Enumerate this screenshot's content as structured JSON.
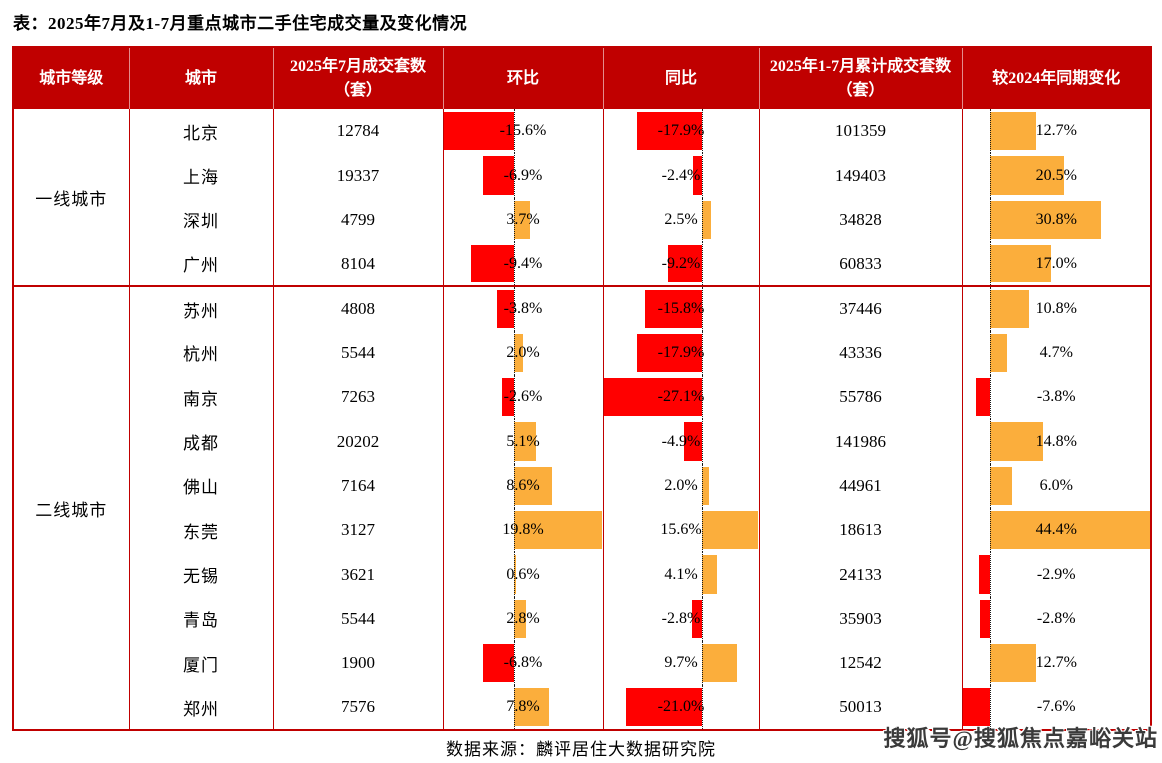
{
  "page_title": "表：2025年7月及1-7月重点城市二手住宅成交量及变化情况",
  "chart_data": {
    "type": "table",
    "title": "2025年7月及1-7月重点城市二手住宅成交量及变化情况",
    "columns": [
      "城市等级",
      "城市",
      "2025年7月成交套数（套）",
      "环比",
      "同比",
      "2025年1-7月累计成交套数（套）",
      "较2024年同期变化"
    ],
    "bar_ranges": {
      "mom": {
        "min": -15.6,
        "max": 19.8
      },
      "yoy": {
        "min": -27.1,
        "max": 15.6
      },
      "cum_chg": {
        "min": -7.6,
        "max": 44.4
      }
    },
    "tiers": [
      {
        "label": "一线城市",
        "rows": [
          {
            "city": "北京",
            "jul_volume": "12784",
            "mom": -15.6,
            "yoy": -17.9,
            "cum_volume": "101359",
            "cum_chg": 12.7
          },
          {
            "city": "上海",
            "jul_volume": "19337",
            "mom": -6.9,
            "yoy": -2.4,
            "cum_volume": "149403",
            "cum_chg": 20.5
          },
          {
            "city": "深圳",
            "jul_volume": "4799",
            "mom": 3.7,
            "yoy": 2.5,
            "cum_volume": "34828",
            "cum_chg": 30.8
          },
          {
            "city": "广州",
            "jul_volume": "8104",
            "mom": -9.4,
            "yoy": -9.2,
            "cum_volume": "60833",
            "cum_chg": 17.0
          }
        ]
      },
      {
        "label": "二线城市",
        "rows": [
          {
            "city": "苏州",
            "jul_volume": "4808",
            "mom": -3.8,
            "yoy": -15.8,
            "cum_volume": "37446",
            "cum_chg": 10.8
          },
          {
            "city": "杭州",
            "jul_volume": "5544",
            "mom": 2.0,
            "yoy": -17.9,
            "cum_volume": "43336",
            "cum_chg": 4.7
          },
          {
            "city": "南京",
            "jul_volume": "7263",
            "mom": -2.6,
            "yoy": -27.1,
            "cum_volume": "55786",
            "cum_chg": -3.8
          },
          {
            "city": "成都",
            "jul_volume": "20202",
            "mom": 5.1,
            "yoy": -4.9,
            "cum_volume": "141986",
            "cum_chg": 14.8
          },
          {
            "city": "佛山",
            "jul_volume": "7164",
            "mom": 8.6,
            "yoy": 2.0,
            "cum_volume": "44961",
            "cum_chg": 6.0
          },
          {
            "city": "东莞",
            "jul_volume": "3127",
            "mom": 19.8,
            "yoy": 15.6,
            "cum_volume": "18613",
            "cum_chg": 44.4
          },
          {
            "city": "无锡",
            "jul_volume": "3621",
            "mom": 0.6,
            "yoy": 4.1,
            "cum_volume": "24133",
            "cum_chg": -2.9
          },
          {
            "city": "青岛",
            "jul_volume": "5544",
            "mom": 2.8,
            "yoy": -2.8,
            "cum_volume": "35903",
            "cum_chg": -2.8
          },
          {
            "city": "厦门",
            "jul_volume": "1900",
            "mom": -6.8,
            "yoy": 9.7,
            "cum_volume": "12542",
            "cum_chg": 12.7
          },
          {
            "city": "郑州",
            "jul_volume": "7576",
            "mom": 7.8,
            "yoy": -21.0,
            "cum_volume": "50013",
            "cum_chg": -7.6
          }
        ]
      }
    ],
    "legend_position": "none",
    "grid": false
  },
  "footer": {
    "source": "数据来源：麟评居住大数据研究院",
    "watermark": "搜狐号@搜狐焦点嘉峪关站"
  },
  "colors": {
    "header_bg": "#c00000",
    "border": "#c00000",
    "bar_negative": "#ff0000",
    "bar_positive": "#fbae3c"
  }
}
